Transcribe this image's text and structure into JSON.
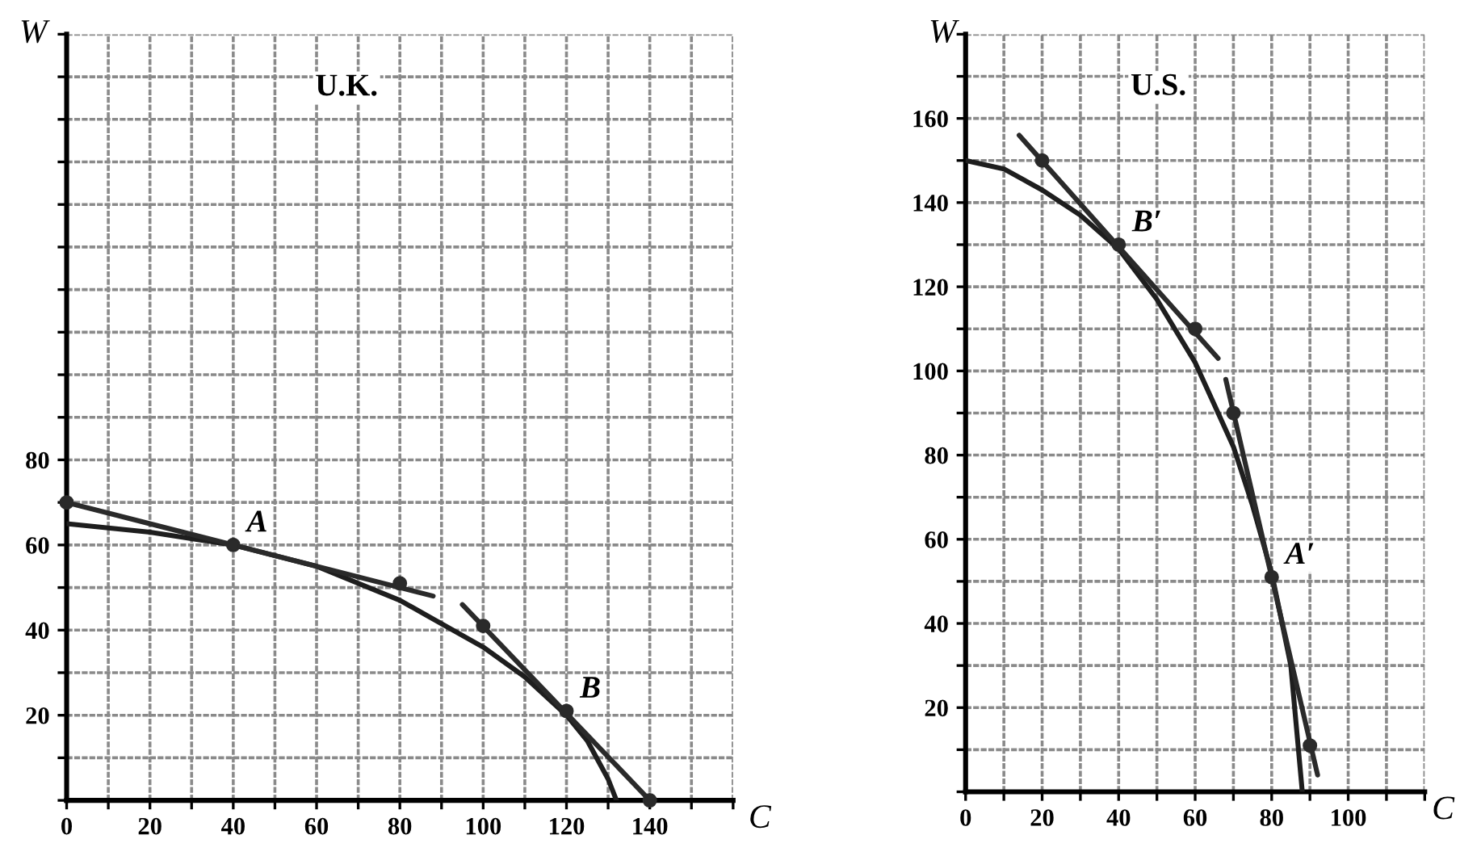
{
  "chart_data": [
    {
      "type": "line",
      "title": "U.K.",
      "xlabel": "C",
      "ylabel": "W",
      "xlim": [
        0,
        160
      ],
      "ylim": [
        0,
        180
      ],
      "grid": true,
      "legend": false,
      "xticks": [
        {
          "value": 0,
          "label": "0"
        },
        {
          "value": 10,
          "label": null
        },
        20,
        {
          "value": 30,
          "label": null
        },
        40,
        {
          "value": 50,
          "label": null
        },
        60,
        {
          "value": 70,
          "label": null
        },
        80,
        {
          "value": 90,
          "label": null
        },
        100,
        {
          "value": 110,
          "label": null
        },
        120,
        {
          "value": 130,
          "label": null
        },
        140,
        {
          "value": 150,
          "label": null
        },
        {
          "value": 160,
          "label": null
        }
      ],
      "yticks": [
        {
          "value": 0,
          "label": null
        },
        {
          "value": 10,
          "label": null
        },
        20,
        {
          "value": 30,
          "label": null
        },
        40,
        {
          "value": 50,
          "label": null
        },
        60,
        {
          "value": 70,
          "label": null
        },
        80,
        {
          "value": 90,
          "label": null
        },
        {
          "value": 100,
          "label": null
        },
        {
          "value": 110,
          "label": null
        },
        {
          "value": 120,
          "label": null
        },
        {
          "value": 130,
          "label": null
        },
        {
          "value": 140,
          "label": null
        },
        {
          "value": 150,
          "label": null
        },
        {
          "value": 160,
          "label": null
        },
        {
          "value": 170,
          "label": null
        },
        {
          "value": 180,
          "label": null
        }
      ],
      "series": [
        {
          "type": "line",
          "color": "#1e1e1e",
          "marker": "none",
          "x": [
            0,
            20,
            40,
            60,
            80,
            100,
            110,
            120,
            125,
            130,
            132
          ],
          "values": [
            65,
            63,
            60,
            55,
            47,
            36,
            29,
            20,
            14,
            5,
            0
          ]
        },
        {
          "type": "line",
          "color": "#2a2a2a",
          "marker": "none",
          "x": [
            0,
            88
          ],
          "values": [
            70,
            48
          ]
        },
        {
          "type": "line",
          "color": "#2a2a2a",
          "marker": "none",
          "x": [
            95,
            140
          ],
          "values": [
            46,
            0
          ]
        },
        {
          "type": "scatter",
          "color": "#2a2a2a",
          "marker": "circle",
          "x": [
            0,
            40,
            80,
            100,
            120,
            140
          ],
          "values": [
            70,
            60,
            51,
            41,
            21,
            0
          ]
        }
      ],
      "annotations": [
        {
          "text": "A",
          "x": 40,
          "y": 60
        },
        {
          "text": "B",
          "x": 120,
          "y": 21
        }
      ]
    },
    {
      "type": "line",
      "title": "U.S.",
      "xlabel": "C",
      "ylabel": "W",
      "xlim": [
        0,
        120
      ],
      "ylim": [
        0,
        180
      ],
      "grid": true,
      "legend": false,
      "xticks": [
        {
          "value": 0,
          "label": "0"
        },
        {
          "value": 10,
          "label": null
        },
        20,
        {
          "value": 30,
          "label": null
        },
        40,
        {
          "value": 50,
          "label": null
        },
        60,
        {
          "value": 70,
          "label": null
        },
        80,
        {
          "value": 90,
          "label": null
        },
        100,
        {
          "value": 110,
          "label": null
        },
        {
          "value": 120,
          "label": null
        }
      ],
      "yticks": [
        {
          "value": 0,
          "label": null
        },
        {
          "value": 10,
          "label": null
        },
        20,
        {
          "value": 30,
          "label": null
        },
        40,
        {
          "value": 50,
          "label": null
        },
        60,
        {
          "value": 70,
          "label": null
        },
        80,
        {
          "value": 90,
          "label": null
        },
        100,
        {
          "value": 110,
          "label": null
        },
        120,
        {
          "value": 130,
          "label": null
        },
        140,
        {
          "value": 150,
          "label": null
        },
        160,
        {
          "value": 170,
          "label": null
        },
        {
          "value": 180,
          "label": null
        }
      ],
      "series": [
        {
          "type": "line",
          "color": "#1e1e1e",
          "marker": "none",
          "x": [
            0,
            10,
            20,
            30,
            40,
            50,
            60,
            70,
            75,
            80,
            85,
            88
          ],
          "values": [
            150,
            148,
            143,
            137,
            129,
            117,
            102,
            82,
            68,
            52,
            30,
            0
          ]
        },
        {
          "type": "line",
          "color": "#2a2a2a",
          "marker": "none",
          "x": [
            14,
            66
          ],
          "values": [
            156,
            103
          ]
        },
        {
          "type": "line",
          "color": "#2a2a2a",
          "marker": "none",
          "x": [
            68,
            92
          ],
          "values": [
            98,
            4
          ]
        },
        {
          "type": "scatter",
          "color": "#2a2a2a",
          "marker": "circle",
          "x": [
            20,
            40,
            60,
            70,
            80,
            90
          ],
          "values": [
            150,
            130,
            110,
            90,
            51,
            11
          ]
        }
      ],
      "annotations": [
        {
          "text": "B′",
          "x": 40,
          "y": 130
        },
        {
          "text": "A′",
          "x": 80,
          "y": 51
        }
      ]
    }
  ]
}
